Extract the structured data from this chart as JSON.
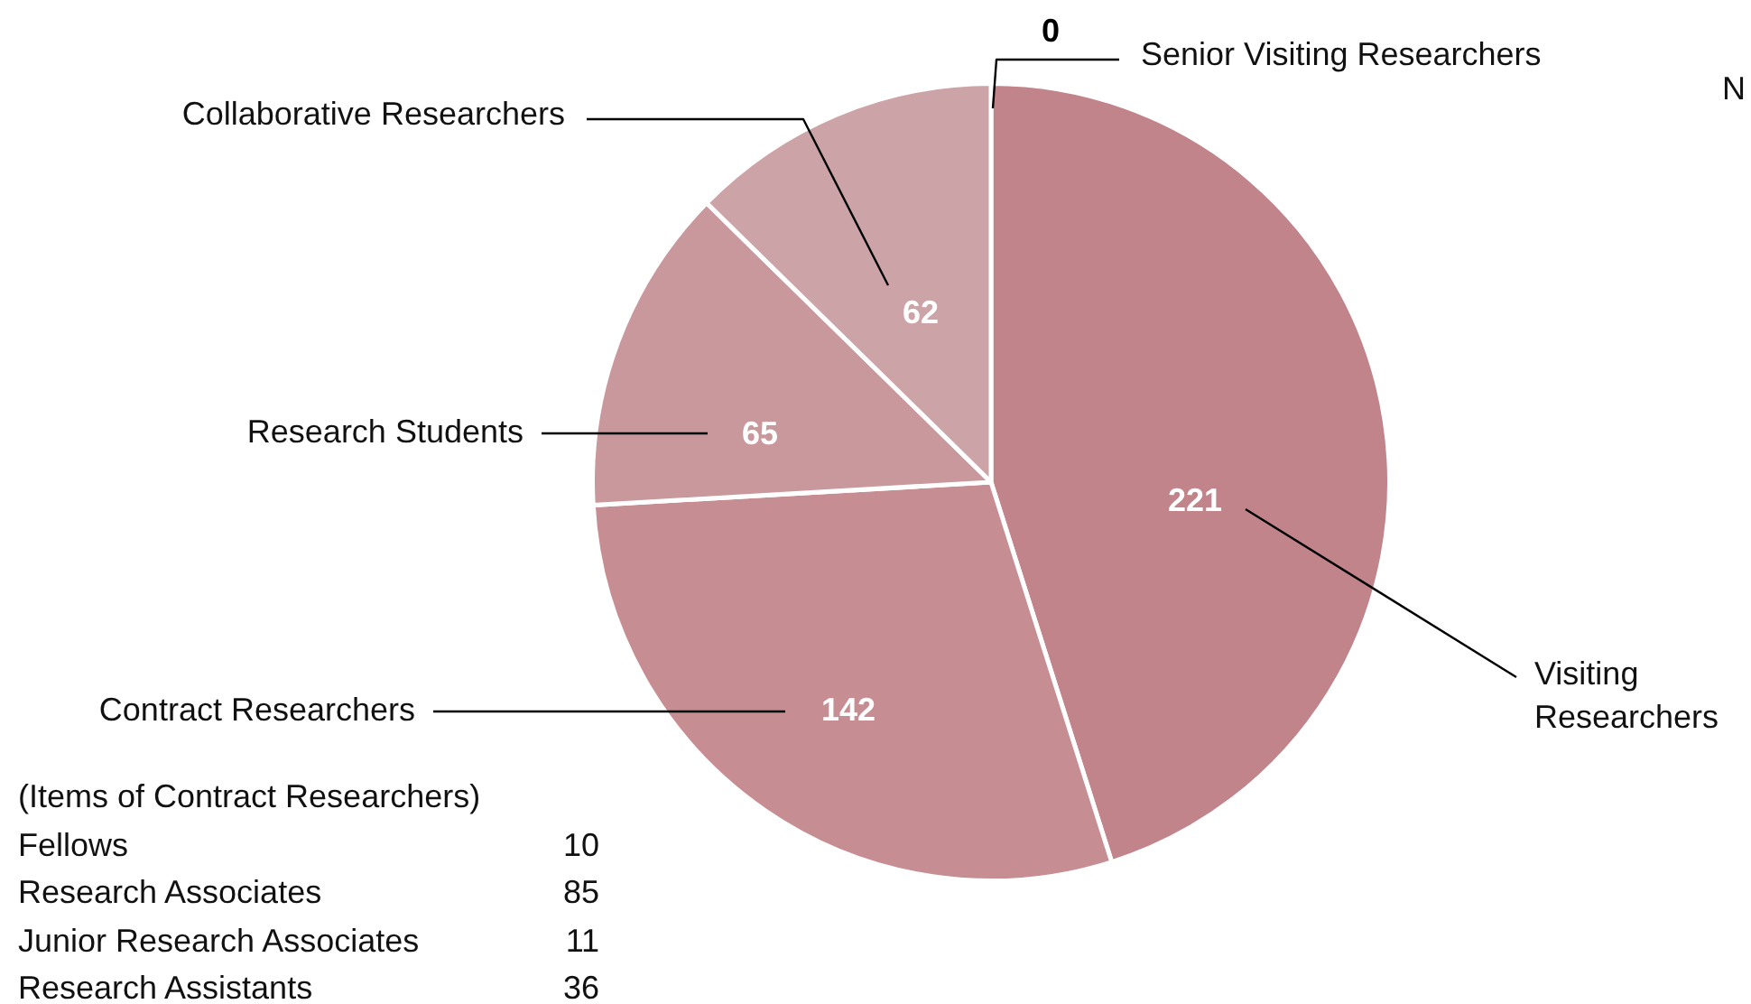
{
  "chart_data": [
    {
      "type": "pie",
      "categories": [
        "Visiting Researchers",
        "Contract Researchers",
        "Research Students",
        "Collaborative Researchers",
        "Senior Visiting Researchers"
      ],
      "values": [
        221,
        142,
        65,
        62,
        0
      ],
      "colors": [
        "#c0848a",
        "#c68e93",
        "#c9989c",
        "#cca3a6",
        "#cfaaac"
      ],
      "value_labels": [
        "221",
        "142",
        "65",
        "62",
        "0"
      ],
      "legend": false,
      "annotations": [
        "N"
      ]
    },
    {
      "type": "other",
      "title": "(Items of Contract Researchers)",
      "categories": [
        "Fellows",
        "Research Associates",
        "Junior Research Associates",
        "Research Assistants"
      ],
      "values": [
        10,
        85,
        11,
        36
      ],
      "data_labels": true
    }
  ]
}
